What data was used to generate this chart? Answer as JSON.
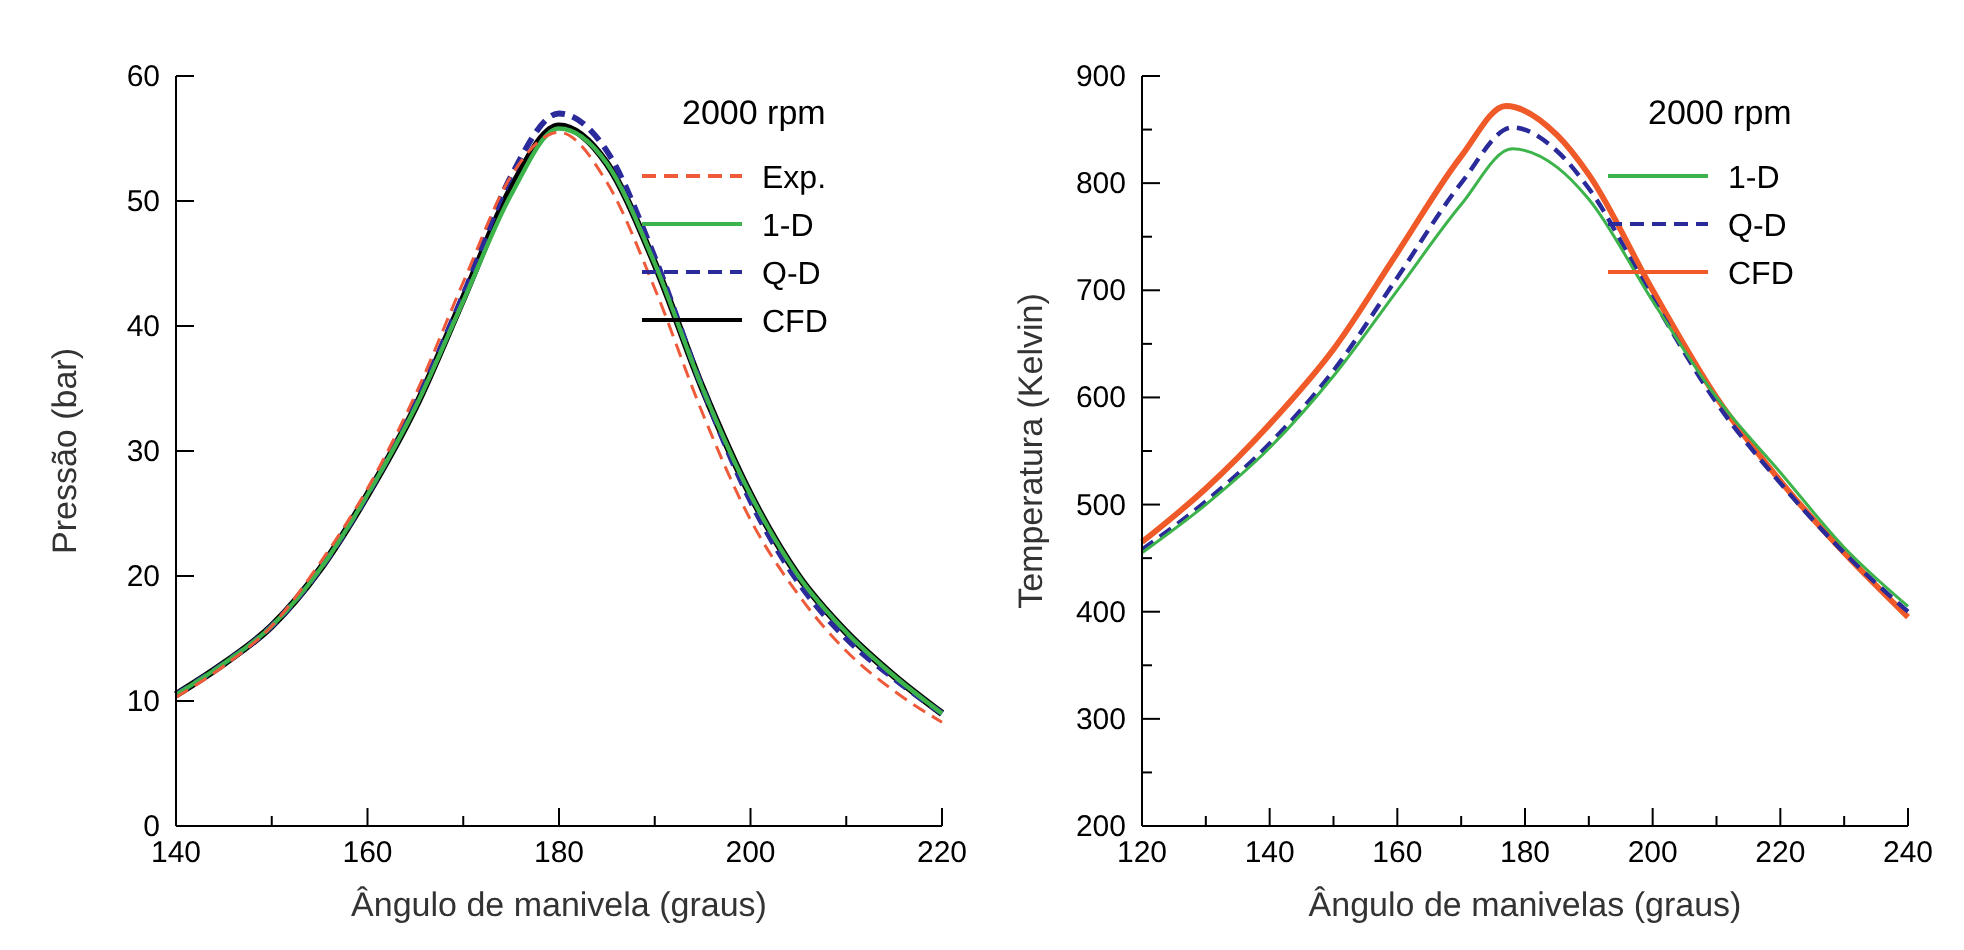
{
  "chart_data": [
    {
      "type": "line",
      "xlabel": "Ângulo de manivela (graus)",
      "ylabel": "Pressão (bar)",
      "legend_title": "2000 rpm",
      "legend": "top right",
      "grid": false,
      "xlim": [
        140,
        220
      ],
      "ylim": [
        0,
        60
      ],
      "xticks": [
        140,
        {
          "value": 150,
          "label": null
        },
        160,
        {
          "value": 170,
          "label": null
        },
        180,
        {
          "value": 190,
          "label": null
        },
        200,
        {
          "value": 210,
          "label": null
        },
        220
      ],
      "yticks": [
        0,
        10,
        20,
        30,
        40,
        50,
        60
      ],
      "x": [
        140,
        145,
        150,
        155,
        160,
        165,
        170,
        175,
        180,
        185,
        190,
        195,
        200,
        205,
        210,
        215,
        220
      ],
      "series": [
        {
          "name": "Exp.",
          "color": "#ee5a3a",
          "line_style": "dashed",
          "values": [
            10.3,
            12.8,
            16,
            21,
            27,
            34.5,
            43.5,
            52,
            55.5,
            51.5,
            43,
            33,
            24.5,
            18.5,
            14,
            10.8,
            8.3
          ]
        },
        {
          "name": "1-D",
          "color": "#3cb44b",
          "line_style": "solid",
          "values": [
            10.5,
            13,
            16,
            20.5,
            26.5,
            33.5,
            42,
            50.5,
            55.8,
            53,
            45,
            35,
            26.5,
            20,
            15.5,
            12,
            9
          ]
        },
        {
          "name": "Q-D",
          "color": "#2a2a9a",
          "line_style": "dashed",
          "values": [
            10.5,
            13,
            16,
            20.5,
            26.5,
            33.8,
            42.5,
            52,
            57,
            54,
            45.5,
            35,
            26,
            19.5,
            15,
            11.8,
            9
          ]
        },
        {
          "name": "CFD",
          "color": "#000000",
          "line_style": "solid",
          "values": [
            10.5,
            13,
            16,
            20.5,
            26.5,
            33.5,
            42.2,
            51,
            56,
            53,
            45,
            35,
            26.5,
            20,
            15.5,
            12,
            9
          ]
        }
      ]
    },
    {
      "type": "line",
      "xlabel": "Ângulo de manivelas (graus)",
      "ylabel": "Temperatura (Kelvin)",
      "legend_title": "2000 rpm",
      "legend": "top right",
      "grid": false,
      "xlim": [
        120,
        240
      ],
      "ylim": [
        200,
        900
      ],
      "xticks": [
        120,
        {
          "value": 130,
          "label": null
        },
        140,
        {
          "value": 150,
          "label": null
        },
        160,
        {
          "value": 170,
          "label": null
        },
        180,
        {
          "value": 190,
          "label": null
        },
        200,
        {
          "value": 210,
          "label": null
        },
        220,
        {
          "value": 230,
          "label": null
        },
        240
      ],
      "yticks": [
        200,
        {
          "value": 250,
          "label": null
        },
        300,
        {
          "value": 350,
          "label": null
        },
        400,
        {
          "value": 450,
          "label": null
        },
        500,
        {
          "value": 550,
          "label": null
        },
        600,
        {
          "value": 650,
          "label": null
        },
        700,
        {
          "value": 750,
          "label": null
        },
        800,
        {
          "value": 850,
          "label": null
        },
        900
      ],
      "series": [
        {
          "name": "1-D",
          "color": "#3cb44b",
          "line_style": "solid",
          "x": [
            120,
            130,
            140,
            150,
            160,
            170,
            178,
            185,
            190,
            200,
            210,
            220,
            230,
            240
          ],
          "values": [
            455,
            500,
            553,
            620,
            700,
            780,
            832,
            815,
            785,
            690,
            600,
            530,
            460,
            405
          ]
        },
        {
          "name": "Q-D",
          "color": "#2a2a9a",
          "line_style": "dashed",
          "x": [
            120,
            130,
            140,
            150,
            160,
            170,
            178,
            185,
            190,
            200,
            210,
            220,
            230,
            240
          ],
          "values": [
            458,
            503,
            557,
            625,
            712,
            800,
            852,
            830,
            795,
            692,
            595,
            520,
            455,
            400
          ]
        },
        {
          "name": "CFD",
          "color": "#f05a28",
          "line_style": "solid",
          "x": [
            120,
            130,
            140,
            150,
            160,
            170,
            177,
            185,
            190,
            200,
            210,
            220,
            230,
            240
          ],
          "values": [
            465,
            515,
            575,
            645,
            735,
            825,
            872,
            845,
            808,
            700,
            600,
            522,
            455,
            395
          ]
        }
      ]
    }
  ]
}
